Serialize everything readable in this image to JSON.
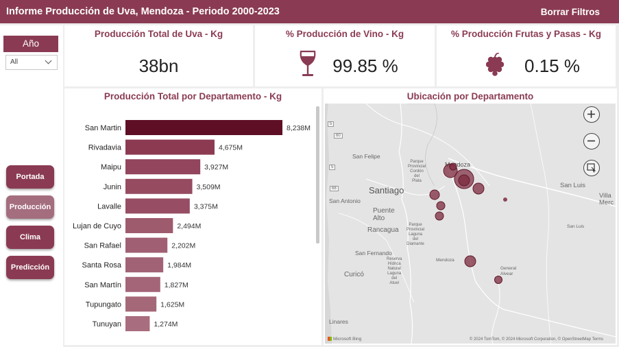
{
  "header": {
    "title": "Informe Producción de Uva, Mendoza  -   Periodo 2000-2023",
    "clear_filters": "Borrar Filtros",
    "color": "#8a3b53"
  },
  "filters": {
    "year_label": "Año",
    "year_value": "All"
  },
  "nav": [
    {
      "label": "Portada",
      "active": false
    },
    {
      "label": "Producción",
      "active": true
    },
    {
      "label": "Clima",
      "active": false
    },
    {
      "label": "Predicción",
      "active": false
    }
  ],
  "kpis": {
    "total": {
      "title": "Producción Total de Uva - Kg",
      "value": "38bn"
    },
    "wine": {
      "title": "% Producción de Vino - Kg",
      "value": "99.85 %",
      "icon": "wine-glass-icon"
    },
    "fruit": {
      "title": "% Producción Frutas y Pasas - Kg",
      "value": "0.15 %",
      "icon": "grapes-icon"
    }
  },
  "chart_data": {
    "type": "bar",
    "orientation": "horizontal",
    "title": "Producción Total por Departamento - Kg",
    "categories": [
      "San Martin",
      "Rivadavia",
      "Maipu",
      "Junin",
      "Lavalle",
      "Lujan de Cuyo",
      "San Rafael",
      "Santa Rosa",
      "San Martín",
      "Tupungato",
      "Tunuyan"
    ],
    "values": [
      8238,
      4675,
      3927,
      3509,
      3375,
      2494,
      2202,
      1984,
      1827,
      1625,
      1274
    ],
    "value_labels": [
      "8,238M",
      "4,675M",
      "3,927M",
      "3,509M",
      "3,375M",
      "2,494M",
      "2,202M",
      "1,984M",
      "1,827M",
      "1,625M",
      "1,274M"
    ],
    "xlim": [
      0,
      8238
    ],
    "grid": false,
    "colors": {
      "max": "#5e0f26",
      "low": "#a86d7e",
      "high": "#8c3a52"
    }
  },
  "map": {
    "title": "Ubicación por Departamento",
    "labels": {
      "mendoza": "Mendoza",
      "san_luis": "San Luis",
      "villa_merc": "Villa\nMerc",
      "santiago": "Santiago",
      "san_felipe": "San Felipe",
      "san_antonio": "San Antonio",
      "puente_alto": "Puente\nAlto",
      "rancagua": "Rancagua",
      "san_fernando": "San Fernando",
      "curico": "Curicó",
      "linares": "Linares",
      "parque1": "Parque\nProvincial\nCordón\ndel\nPlata",
      "parque2": "Parque\nProvincial\nLaguna\ndel\nDiamante",
      "reserva": "Reserva\nHídrica\nNatural\nLaguna\ndel\nAtuel",
      "general_alvear": "General\nAlvear",
      "mendoza_small": "Mendoza",
      "san_luis_small": "San Luis",
      "route5a": "5",
      "route5b": "5",
      "route68": "68",
      "route60": "60"
    },
    "bubble_color": "#7d2a3e",
    "attribution": "© 2024 TomTom, © 2024 Microsoft Corporation, © OpenStreetMap  Terms",
    "provider": "Microsoft Bing",
    "controls": {
      "zoom_in": "zoom-in-icon",
      "zoom_out": "zoom-out-icon",
      "select": "select-area-icon"
    }
  }
}
